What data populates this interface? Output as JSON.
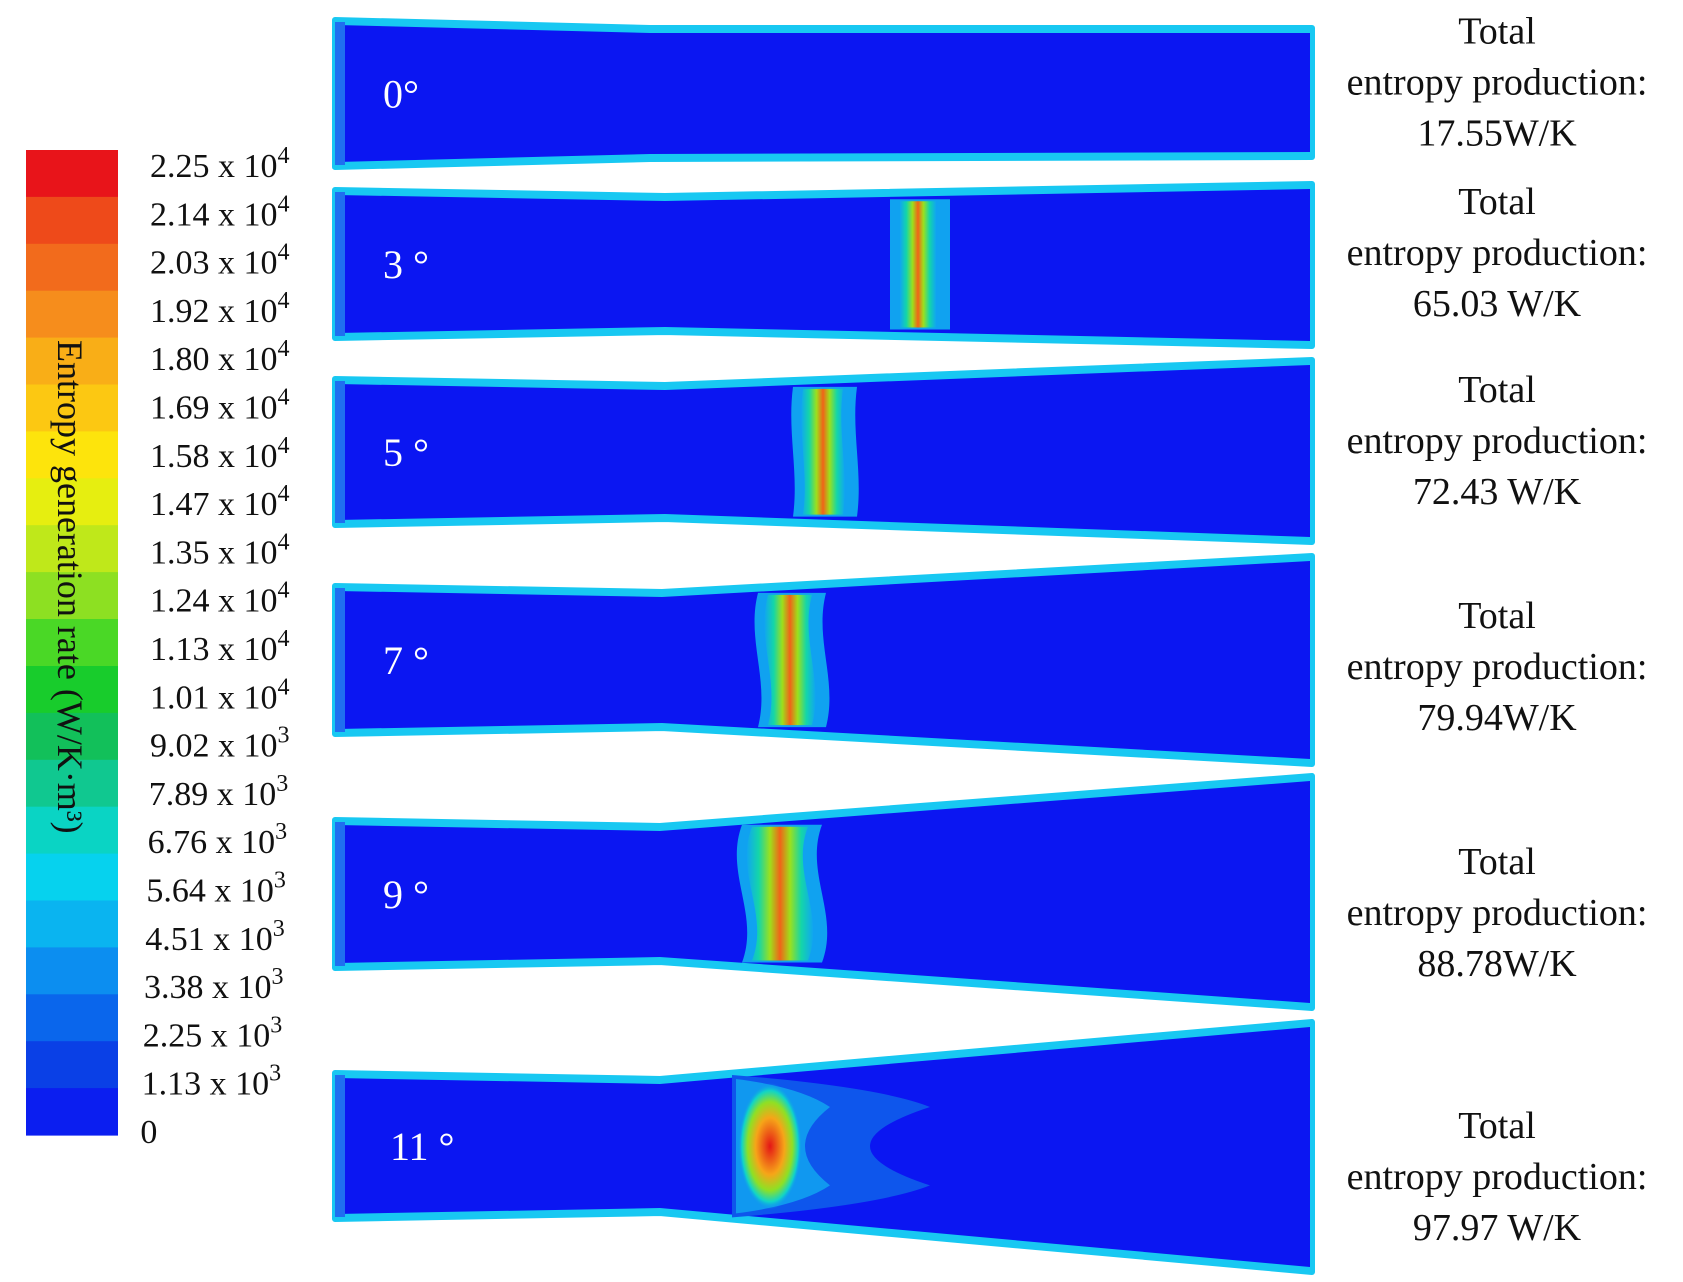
{
  "legend": {
    "title": "Entropy generation rate (W/K·m³)",
    "ticks": [
      {
        "mantissa": "2.25",
        "exp": "4"
      },
      {
        "mantissa": "2.14",
        "exp": "4"
      },
      {
        "mantissa": "2.03",
        "exp": "4"
      },
      {
        "mantissa": "1.92",
        "exp": "4"
      },
      {
        "mantissa": "1.80",
        "exp": "4"
      },
      {
        "mantissa": "1.69",
        "exp": "4"
      },
      {
        "mantissa": "1.58",
        "exp": "4"
      },
      {
        "mantissa": "1.47",
        "exp": "4"
      },
      {
        "mantissa": "1.35",
        "exp": "4"
      },
      {
        "mantissa": "1.24",
        "exp": "4"
      },
      {
        "mantissa": "1.13",
        "exp": "4"
      },
      {
        "mantissa": "1.01",
        "exp": "4"
      },
      {
        "mantissa": "9.02",
        "exp": "3"
      },
      {
        "mantissa": "7.89",
        "exp": "3"
      },
      {
        "mantissa": "6.76",
        "exp": "3"
      },
      {
        "mantissa": "5.64",
        "exp": "3"
      },
      {
        "mantissa": "4.51",
        "exp": "3"
      },
      {
        "mantissa": "3.38",
        "exp": "3"
      },
      {
        "mantissa": "2.25",
        "exp": "3"
      },
      {
        "mantissa": "1.13",
        "exp": "3"
      },
      {
        "mantissa": "0",
        "exp": ""
      }
    ],
    "colors": [
      "#e8141a",
      "#ee4a1a",
      "#f26b1c",
      "#f68d1c",
      "#f9ae17",
      "#fcc812",
      "#fde40c",
      "#e6ee10",
      "#bfe81a",
      "#8de022",
      "#4ad826",
      "#18cc2c",
      "#12c05a",
      "#10c890",
      "#0ad4c4",
      "#06d2ee",
      "#0ab4f0",
      "#0c8ef0",
      "#0a66ec",
      "#0a40e6",
      "#0b1ef0"
    ]
  },
  "panels": [
    {
      "angle": "0°",
      "entropy_lines": [
        "Total",
        "entropy production:",
        "17.55W/K"
      ]
    },
    {
      "angle": "3 °",
      "entropy_lines": [
        "Total",
        "entropy production:",
        "65.03 W/K"
      ]
    },
    {
      "angle": "5 °",
      "entropy_lines": [
        "Total",
        "entropy production:",
        "72.43 W/K"
      ]
    },
    {
      "angle": "7 °",
      "entropy_lines": [
        "Total",
        "entropy production:",
        "79.94W/K"
      ]
    },
    {
      "angle": "9 °",
      "entropy_lines": [
        "Total",
        "entropy production:",
        "88.78W/K"
      ]
    },
    {
      "angle": "11 °",
      "entropy_lines": [
        "Total",
        "entropy production:",
        "97.97 W/K"
      ]
    }
  ],
  "colors": {
    "field": "#0b16f2",
    "wall": "#18c8f2",
    "inlet": "#1f6ff0"
  }
}
